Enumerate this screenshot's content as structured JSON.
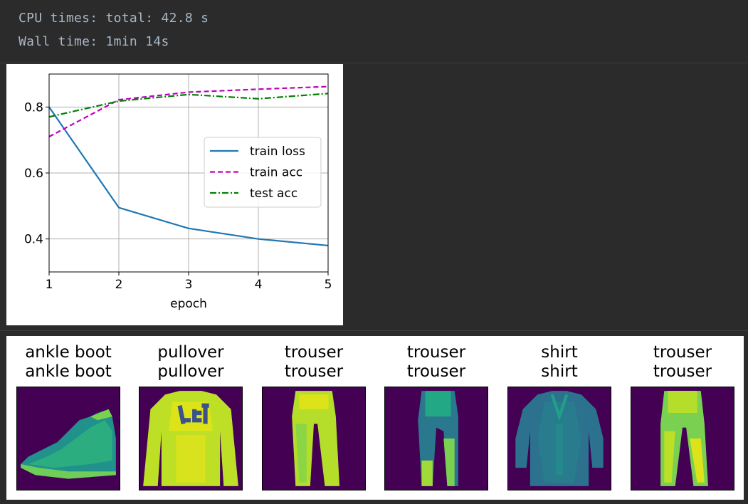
{
  "console": {
    "line1": "CPU times: total: 42.8 s",
    "line2": "Wall time: 1min 14s"
  },
  "chart_data": {
    "type": "line",
    "xlabel": "epoch",
    "ylabel": "",
    "xlim": [
      1,
      5
    ],
    "ylim": [
      0.3,
      0.9
    ],
    "xticks": [
      "1",
      "2",
      "3",
      "4",
      "5"
    ],
    "yticks": [
      "0.4",
      "0.6",
      "0.8"
    ],
    "grid": true,
    "legend_position": "center-right",
    "series": [
      {
        "name": "train loss",
        "x": [
          1,
          2,
          3,
          4,
          5
        ],
        "values": [
          0.8,
          0.495,
          0.432,
          0.4,
          0.38
        ],
        "color": "#1f77b4",
        "style": "solid"
      },
      {
        "name": "train acc",
        "x": [
          1,
          2,
          3,
          4,
          5
        ],
        "values": [
          0.71,
          0.822,
          0.845,
          0.854,
          0.862
        ],
        "color": "#bf00bf",
        "style": "dashed"
      },
      {
        "name": "test acc",
        "x": [
          1,
          2,
          3,
          4,
          5
        ],
        "values": [
          0.77,
          0.818,
          0.838,
          0.825,
          0.841
        ],
        "color": "#008000",
        "style": "dashdot"
      }
    ]
  },
  "gallery": [
    {
      "true_label": "ankle boot",
      "pred_label": "ankle boot",
      "icon": "ankle-boot-image"
    },
    {
      "true_label": "pullover",
      "pred_label": "pullover",
      "icon": "pullover-image"
    },
    {
      "true_label": "trouser",
      "pred_label": "trouser",
      "icon": "trouser-image"
    },
    {
      "true_label": "trouser",
      "pred_label": "trouser",
      "icon": "trouser-image"
    },
    {
      "true_label": "shirt",
      "pred_label": "shirt",
      "icon": "shirt-image"
    },
    {
      "true_label": "trouser",
      "pred_label": "trouser",
      "icon": "trouser-image"
    }
  ],
  "colors": {
    "background": "#2b2b2b",
    "console_text": "#a9b7c6",
    "image_bg": "#440154",
    "image_fg": "#dde318",
    "image_mid": "#2fb47c"
  }
}
